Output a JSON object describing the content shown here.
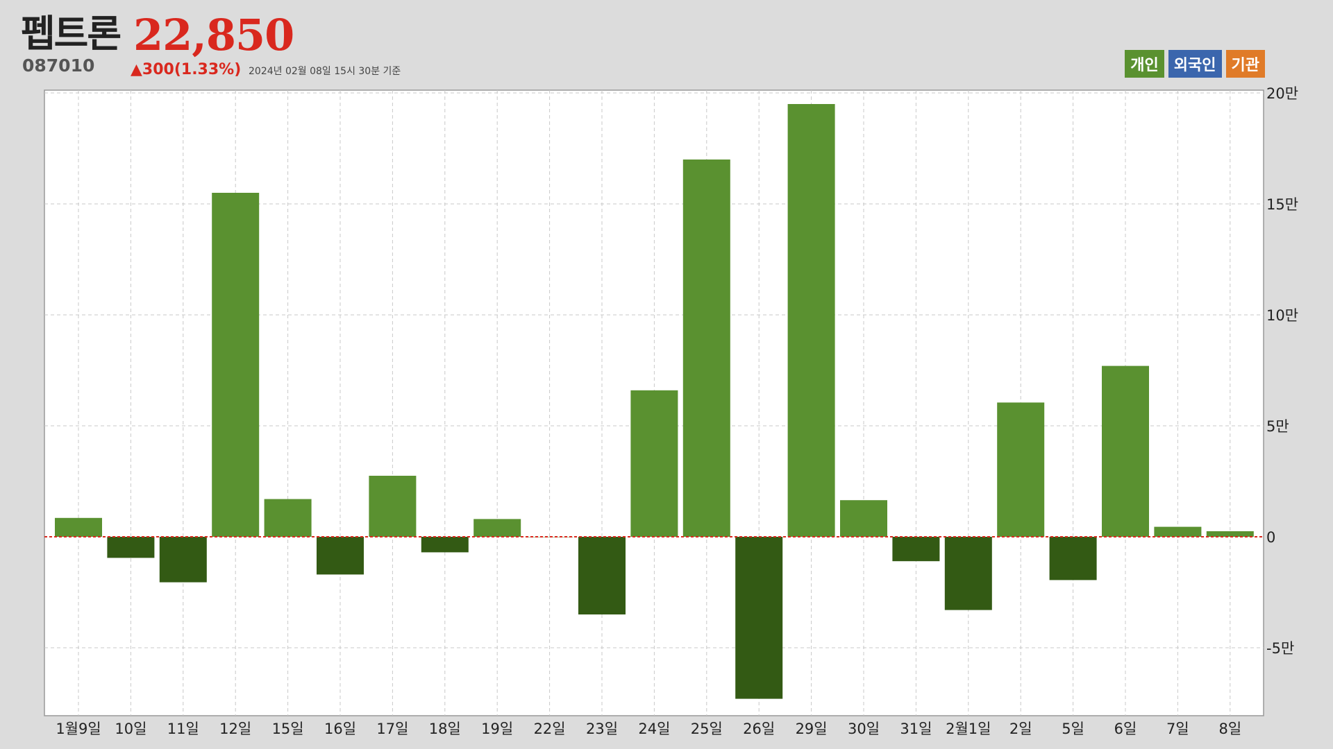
{
  "stock": {
    "name": "펩트론",
    "price": "22,850",
    "code": "087010",
    "change": "▲300(1.33%)",
    "as_of": "2024년 02월 08일 15시 30분 기준"
  },
  "legend": [
    {
      "label": "개인",
      "color": "#5a9130"
    },
    {
      "label": "외국인",
      "color": "#3b66ad"
    },
    {
      "label": "기관",
      "color": "#e07b28"
    }
  ],
  "colors": {
    "positive": "#5a9130",
    "negative": "#335a14",
    "zero_line": "#d9281e",
    "plot_bg": "#ffffff",
    "grid": "#c8c8c8"
  },
  "chart_data": {
    "type": "bar",
    "series_name": "개인",
    "categories": [
      "1월9일",
      "10일",
      "11일",
      "12일",
      "15일",
      "16일",
      "17일",
      "18일",
      "19일",
      "22일",
      "23일",
      "24일",
      "25일",
      "26일",
      "29일",
      "30일",
      "31일",
      "2월1일",
      "2일",
      "5일",
      "6일",
      "7일",
      "8일"
    ],
    "values": [
      8500,
      -9500,
      -20500,
      155000,
      17000,
      -17000,
      27500,
      -7000,
      8000,
      0,
      -35000,
      66000,
      170000,
      -73000,
      195000,
      16500,
      -11000,
      -33000,
      60500,
      -19500,
      77000,
      4500,
      2500
    ],
    "ylim": [
      -80000,
      200000
    ],
    "yticks": [
      -50000,
      0,
      50000,
      100000,
      150000,
      200000
    ],
    "ytick_labels": [
      "-5만",
      "0",
      "5만",
      "10만",
      "15만",
      "20만"
    ],
    "grid": true,
    "legend_position": "top-right"
  }
}
